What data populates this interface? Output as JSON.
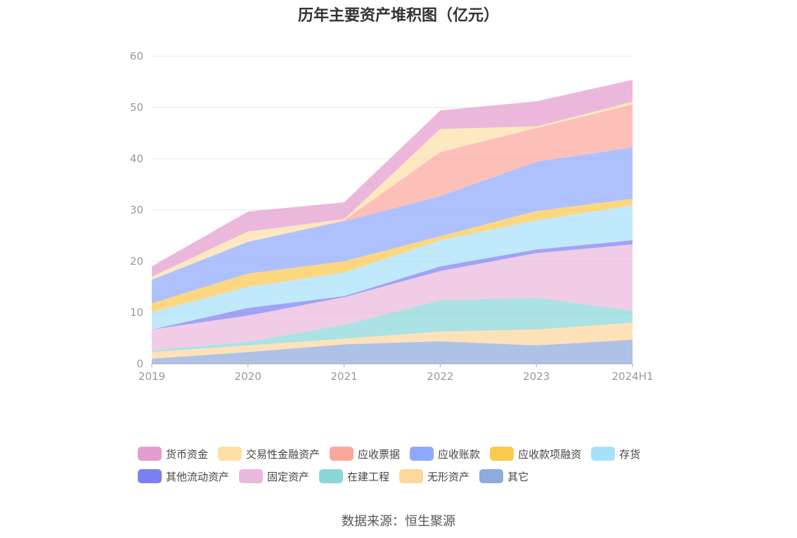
{
  "chart_data": {
    "type": "area",
    "title": "历年主要资产堆积图（亿元）",
    "x": [
      "2019",
      "2020",
      "2021",
      "2022",
      "2023",
      "2024H1"
    ],
    "ylim": [
      0,
      60
    ],
    "yticks": [
      0,
      10,
      20,
      30,
      40,
      50,
      60
    ],
    "grid": true,
    "legend_position": "bottom",
    "stacked": true,
    "series": [
      {
        "name": "其它",
        "color": "#8faadc",
        "values": [
          1.0,
          2.3,
          3.8,
          4.4,
          3.6,
          4.7
        ]
      },
      {
        "name": "无形资产",
        "color": "#fcd79e",
        "values": [
          1.3,
          1.3,
          1.1,
          1.9,
          3.1,
          3.3
        ]
      },
      {
        "name": "在建工程",
        "color": "#8ad7d8",
        "values": [
          0.3,
          0.7,
          2.7,
          6.1,
          6.2,
          2.3
        ]
      },
      {
        "name": "固定资产",
        "color": "#eab8dc",
        "values": [
          4.1,
          5.1,
          5.4,
          5.7,
          8.7,
          13.0
        ]
      },
      {
        "name": "其他流动资产",
        "color": "#7b80f2",
        "values": [
          0.0,
          1.5,
          0.2,
          0.9,
          0.7,
          0.8
        ]
      },
      {
        "name": "存货",
        "color": "#a8e0fb",
        "values": [
          3.4,
          4.1,
          4.6,
          5.1,
          5.7,
          6.8
        ]
      },
      {
        "name": "应收款项融资",
        "color": "#fcc84f",
        "values": [
          1.7,
          2.6,
          2.2,
          0.8,
          1.8,
          1.3
        ]
      },
      {
        "name": "应收账款",
        "color": "#8fa9fd",
        "values": [
          4.6,
          6.2,
          7.8,
          7.8,
          9.6,
          10.0
        ]
      },
      {
        "name": "应收票据",
        "color": "#fba79d",
        "values": [
          0.0,
          0.0,
          0.2,
          8.6,
          6.6,
          8.4
        ]
      },
      {
        "name": "交易性金融资产",
        "color": "#fddfa6",
        "values": [
          0.6,
          2.0,
          0.2,
          4.5,
          0.3,
          0.5
        ]
      },
      {
        "name": "货币资金",
        "color": "#e39dcf",
        "values": [
          2.0,
          3.9,
          3.3,
          3.6,
          4.9,
          4.3
        ]
      }
    ]
  },
  "legend": {
    "row1": [
      "货币资金",
      "交易性金融资产",
      "应收票据",
      "应收账款",
      "应收款项融资",
      "存货"
    ],
    "row2": [
      "其他流动资产",
      "固定资产",
      "在建工程",
      "无形资产",
      "其它"
    ]
  },
  "source": "数据来源：恒生聚源"
}
